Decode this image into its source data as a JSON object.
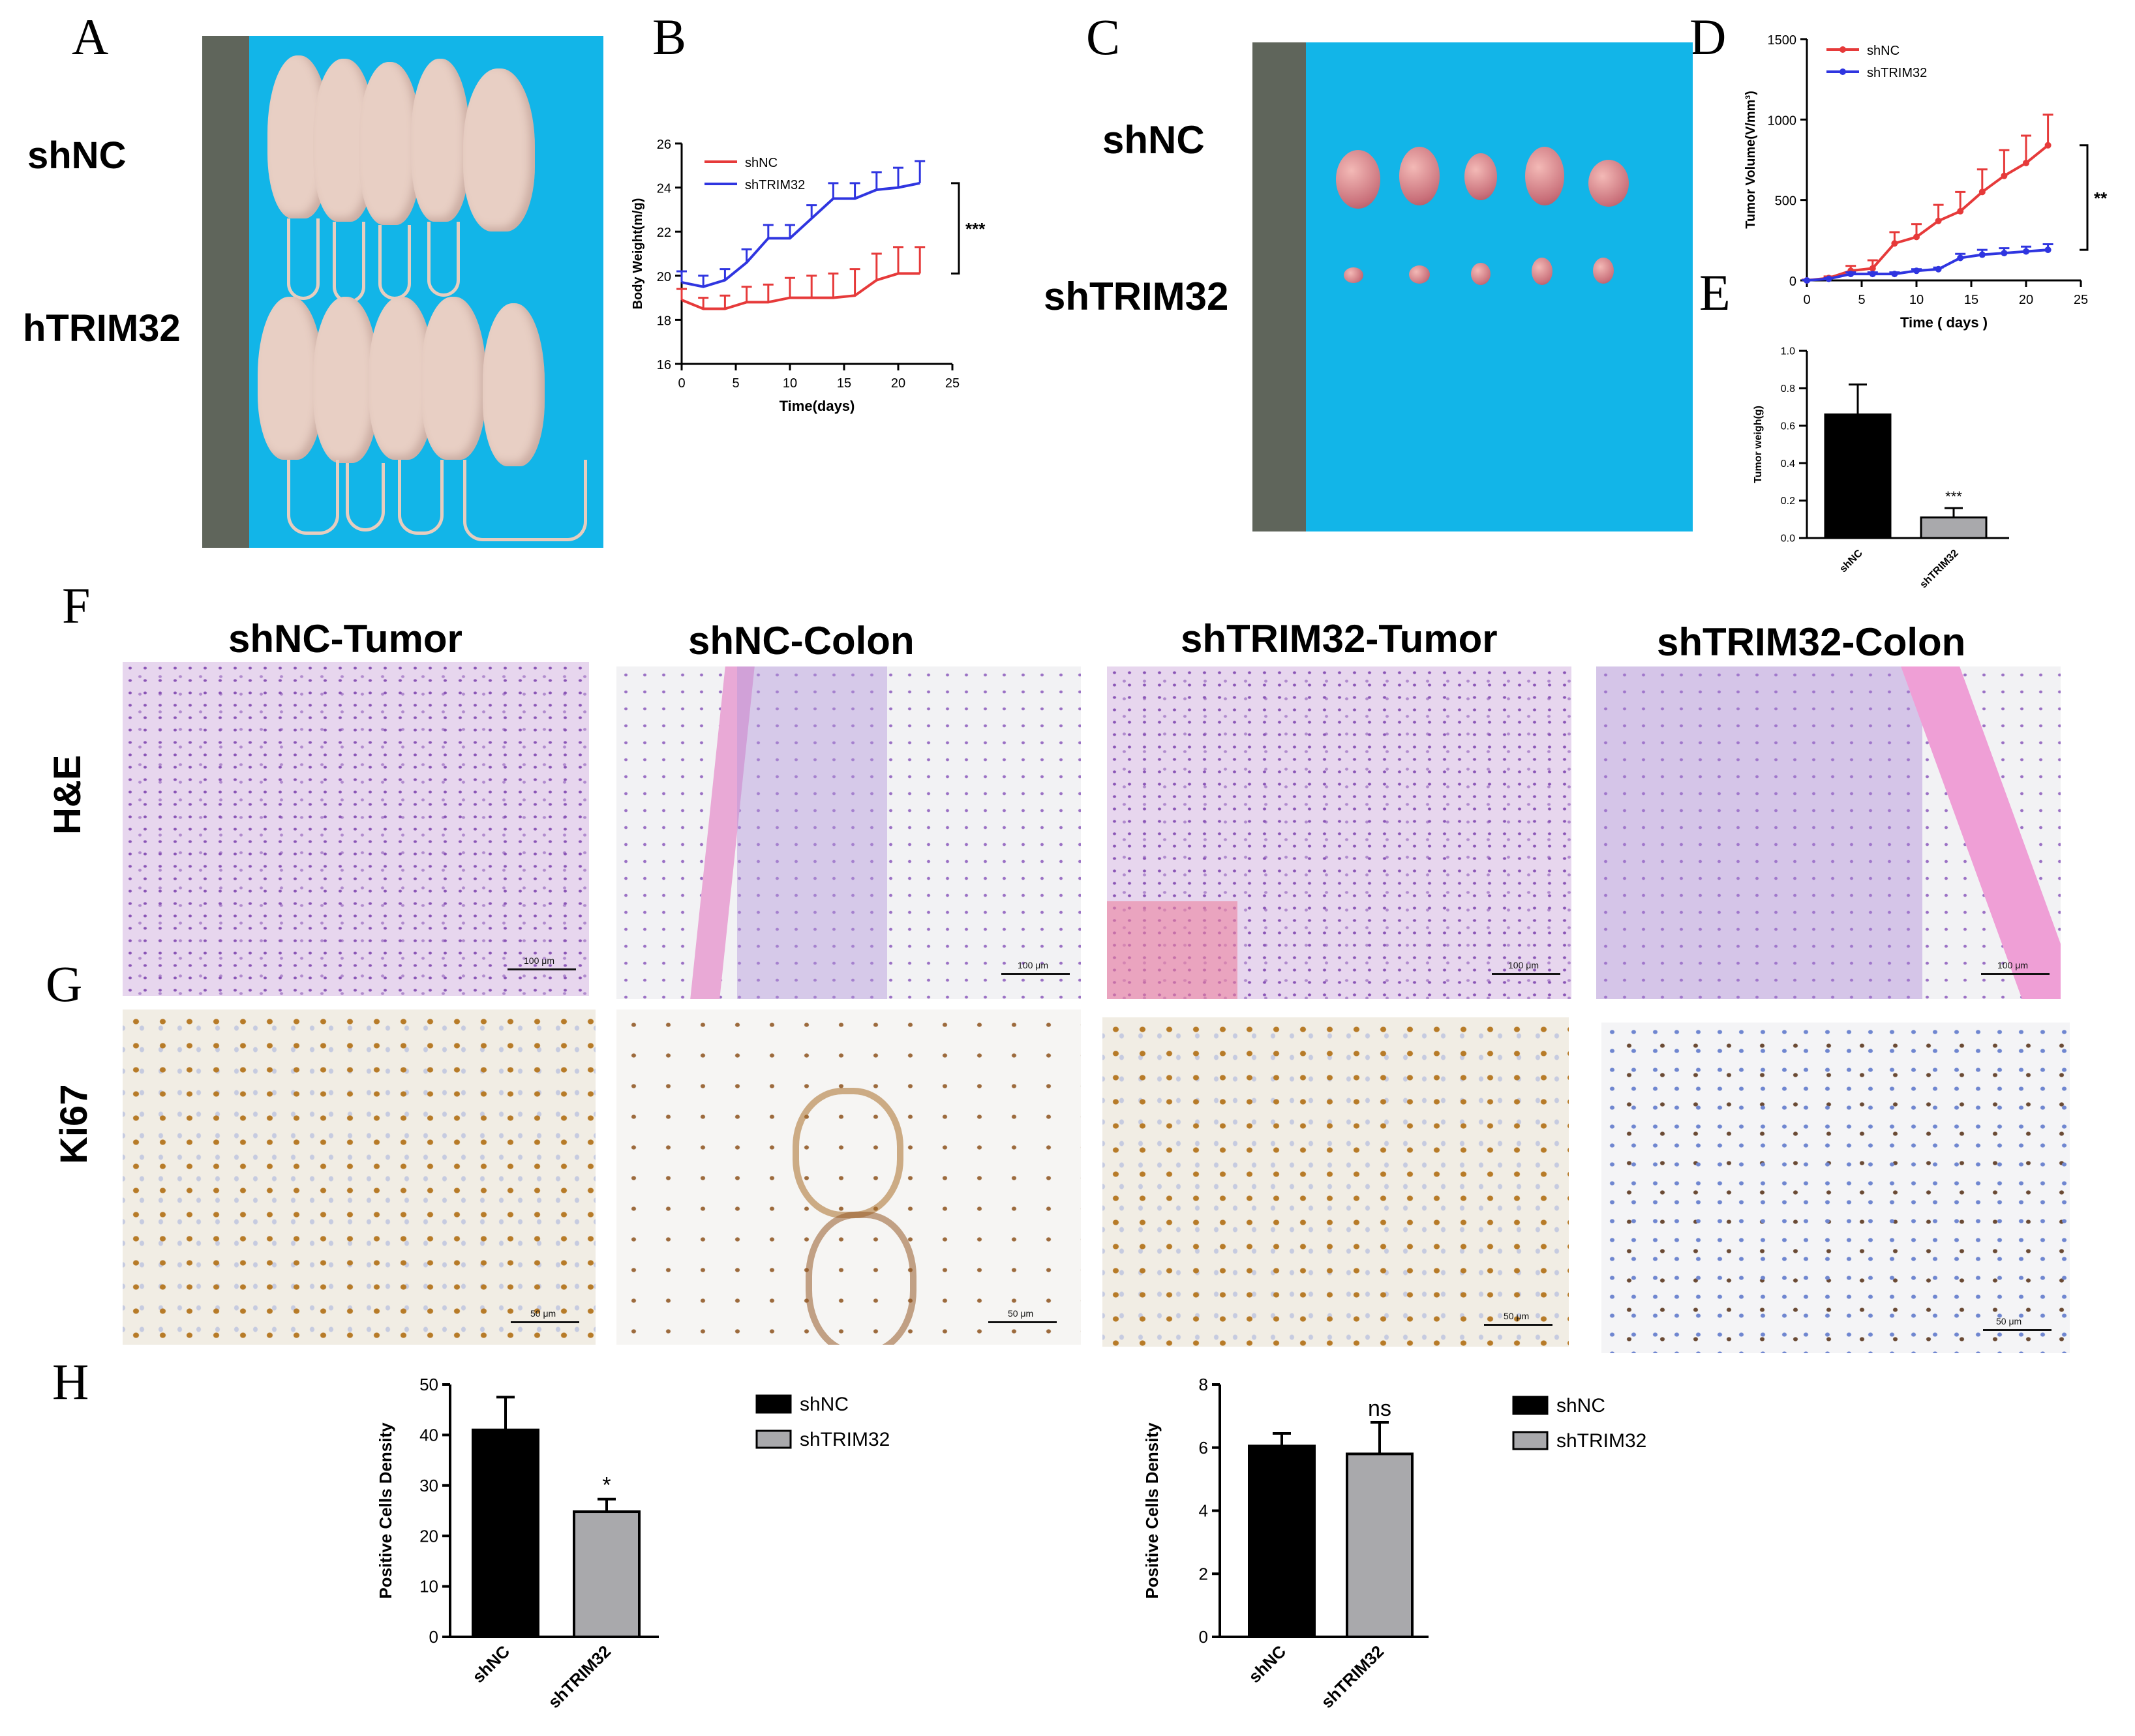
{
  "panels": {
    "A": "A",
    "B": "B",
    "C": "C",
    "D": "D",
    "E": "E",
    "F": "F",
    "G": "G",
    "H": "H"
  },
  "panelA": {
    "row1": "shNC",
    "row2": "hTRIM32"
  },
  "panelC": {
    "row1": "shNC",
    "row2": "shTRIM32"
  },
  "panelF": {
    "titles": [
      "shNC-Tumor",
      "shNC-Colon",
      "shTRIM32-Tumor",
      "shTRIM32-Colon"
    ],
    "row_he": "H&E",
    "row_ki67": "Ki67",
    "scale_he": "100 μm",
    "scale_ki67": "50 μm"
  },
  "colors": {
    "shNC_line": "#e63a3a",
    "shTRIM32_line": "#2f35e0",
    "shNC_bar": "#000000",
    "shTRIM32_bar": "#a9a9ac",
    "background_blue": "#12b5e8"
  },
  "chart_data": [
    {
      "id": "B",
      "type": "line",
      "xlabel": "Time(days)",
      "ylabel": "Body Weight(m/g)",
      "xlim": [
        0,
        25
      ],
      "ylim": [
        16,
        26
      ],
      "xticks": [
        0,
        5,
        10,
        15,
        20,
        25
      ],
      "yticks": [
        16,
        18,
        20,
        22,
        24,
        26
      ],
      "legend_position": "top-left",
      "significance": "***",
      "series": [
        {
          "name": "shNC",
          "color": "#e63a3a",
          "x": [
            0,
            2,
            4,
            6,
            8,
            10,
            12,
            14,
            16,
            18,
            20,
            22
          ],
          "y": [
            18.9,
            18.5,
            18.5,
            18.8,
            18.8,
            19.0,
            19.0,
            19.0,
            19.1,
            19.8,
            20.1,
            20.1
          ],
          "err": [
            0.5,
            0.5,
            0.6,
            0.7,
            0.8,
            0.9,
            1.0,
            1.1,
            1.2,
            1.2,
            1.2,
            1.2
          ]
        },
        {
          "name": "shTRIM32",
          "color": "#2f35e0",
          "x": [
            0,
            2,
            4,
            6,
            8,
            10,
            12,
            14,
            16,
            18,
            20,
            22
          ],
          "y": [
            19.7,
            19.5,
            19.8,
            20.6,
            21.7,
            21.7,
            22.6,
            23.5,
            23.5,
            23.9,
            24.0,
            24.2
          ],
          "err": [
            0.5,
            0.5,
            0.5,
            0.6,
            0.6,
            0.6,
            0.6,
            0.7,
            0.7,
            0.8,
            0.9,
            1.0
          ]
        }
      ]
    },
    {
      "id": "D",
      "type": "line",
      "xlabel": "Time ( days )",
      "ylabel": "Tumor Volume(V/mm³)",
      "xlim": [
        0,
        25
      ],
      "ylim": [
        0,
        1500
      ],
      "xticks": [
        0,
        5,
        10,
        15,
        20,
        25
      ],
      "yticks": [
        0,
        500,
        1000,
        1500
      ],
      "legend_position": "top-left",
      "significance": "**",
      "series": [
        {
          "name": "shNC",
          "color": "#e63a3a",
          "x": [
            0,
            2,
            4,
            6,
            8,
            10,
            12,
            14,
            16,
            18,
            20,
            22
          ],
          "y": [
            0,
            15,
            60,
            75,
            230,
            270,
            370,
            430,
            550,
            650,
            730,
            840
          ],
          "err": [
            5,
            10,
            30,
            50,
            70,
            80,
            100,
            120,
            140,
            160,
            170,
            190
          ]
        },
        {
          "name": "shTRIM32",
          "color": "#2f35e0",
          "x": [
            0,
            2,
            4,
            6,
            8,
            10,
            12,
            14,
            16,
            18,
            20,
            22
          ],
          "y": [
            0,
            10,
            40,
            40,
            40,
            60,
            70,
            140,
            160,
            170,
            180,
            190
          ],
          "err": [
            3,
            5,
            10,
            10,
            10,
            10,
            10,
            25,
            30,
            30,
            30,
            35
          ]
        }
      ]
    },
    {
      "id": "E",
      "type": "bar",
      "ylabel": "Tumor weigh(g)",
      "categories": [
        "shNC",
        "shTRIM32"
      ],
      "values": [
        0.66,
        0.11
      ],
      "err": [
        0.16,
        0.05
      ],
      "ylim": [
        0,
        1.0
      ],
      "yticks": [
        0.0,
        0.2,
        0.4,
        0.6,
        0.8,
        1.0
      ],
      "annotations": [
        "",
        "***"
      ]
    },
    {
      "id": "H1",
      "type": "bar",
      "ylabel": "Positive Cells Density",
      "categories": [
        "shNC",
        "shTRIM32"
      ],
      "values": [
        41,
        24.8
      ],
      "err": [
        6.5,
        2.5
      ],
      "ylim": [
        0,
        50
      ],
      "yticks": [
        0,
        10,
        20,
        30,
        40,
        50
      ],
      "annotations": [
        "",
        "*"
      ],
      "legend": [
        "shNC",
        "shTRIM32"
      ]
    },
    {
      "id": "H2",
      "type": "bar",
      "ylabel": "Positive Cells Density",
      "categories": [
        "shNC",
        "shTRIM32"
      ],
      "values": [
        6.05,
        5.8
      ],
      "err": [
        0.4,
        1.0
      ],
      "ylim": [
        0,
        8
      ],
      "yticks": [
        0,
        2,
        4,
        6,
        8
      ],
      "annotations": [
        "",
        "ns"
      ],
      "legend": [
        "shNC",
        "shTRIM32"
      ]
    }
  ]
}
